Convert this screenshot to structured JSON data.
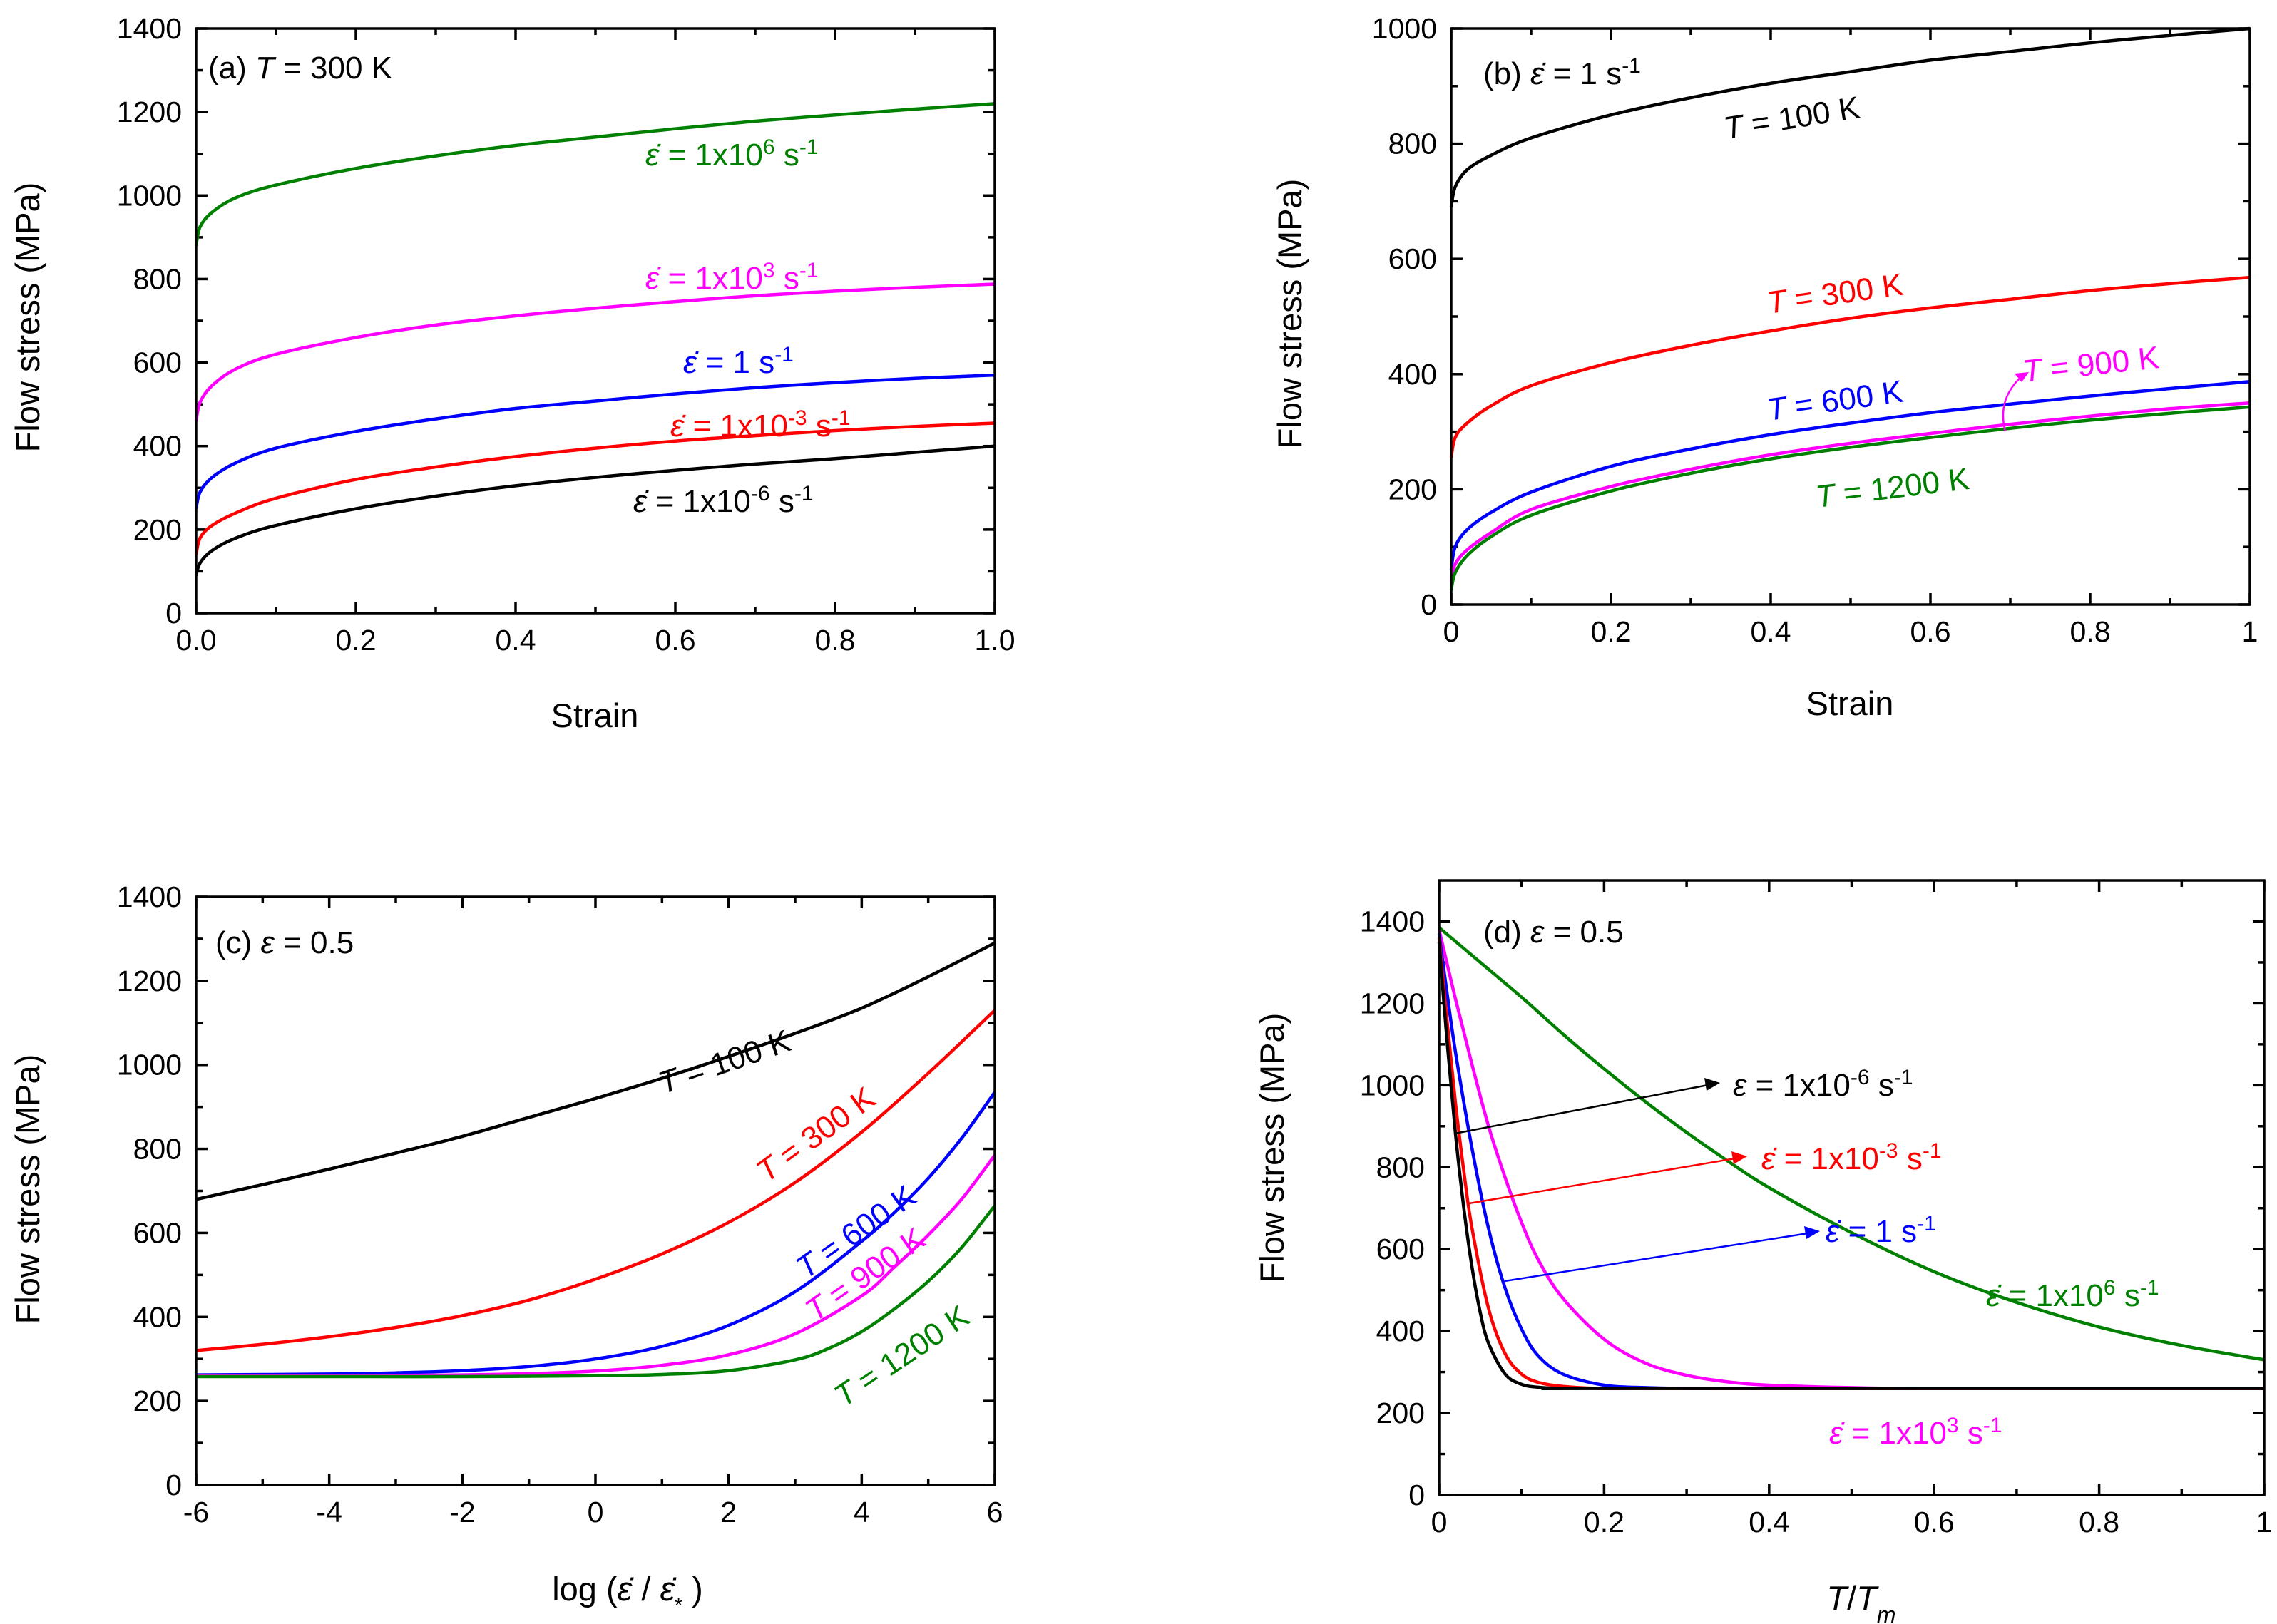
{
  "colors": {
    "black": "#000000",
    "red": "#ff0000",
    "blue": "#0000ff",
    "magenta": "#ff00ff",
    "green": "#008000"
  },
  "chart_data": [
    {
      "id": "a",
      "type": "line",
      "panel_label": "(a) T = 300 K",
      "xlabel": "Strain",
      "ylabel": "Flow stress (MPa)",
      "xlim": [
        0,
        1
      ],
      "ylim": [
        0,
        1400
      ],
      "xticks": [
        "0.0",
        "0.2",
        "0.4",
        "0.6",
        "0.8",
        "1.0"
      ],
      "xtick_values": [
        0,
        0.2,
        0.4,
        0.6,
        0.8,
        1.0
      ],
      "yticks": [
        "0",
        "200",
        "400",
        "600",
        "800",
        "1000",
        "1200",
        "1400"
      ],
      "ytick_values": [
        0,
        200,
        400,
        600,
        800,
        1000,
        1200,
        1400
      ],
      "series": [
        {
          "label": "ε̇ = 1x10⁶ s⁻¹",
          "color": "green",
          "x": [
            0,
            0.005,
            0.02,
            0.05,
            0.1,
            0.2,
            0.3,
            0.4,
            0.5,
            0.6,
            0.7,
            0.8,
            0.9,
            1.0
          ],
          "y": [
            880,
            925,
            960,
            995,
            1025,
            1065,
            1095,
            1120,
            1140,
            1160,
            1178,
            1193,
            1207,
            1220
          ]
        },
        {
          "label": "ε̇ = 1x10³ s⁻¹",
          "color": "magenta",
          "x": [
            0,
            0.005,
            0.02,
            0.05,
            0.1,
            0.2,
            0.3,
            0.4,
            0.5,
            0.6,
            0.7,
            0.8,
            0.9,
            1.0
          ],
          "y": [
            460,
            505,
            545,
            585,
            620,
            660,
            690,
            712,
            730,
            746,
            760,
            771,
            780,
            788
          ]
        },
        {
          "label": "ε̇ = 1 s⁻¹",
          "color": "blue",
          "x": [
            0,
            0.005,
            0.02,
            0.05,
            0.1,
            0.2,
            0.3,
            0.4,
            0.5,
            0.6,
            0.7,
            0.8,
            0.9,
            1.0
          ],
          "y": [
            250,
            290,
            325,
            360,
            395,
            435,
            465,
            490,
            508,
            525,
            540,
            552,
            562,
            570
          ]
        },
        {
          "label": "ε̇ = 1x10⁻³ s⁻¹",
          "color": "red",
          "x": [
            0,
            0.005,
            0.02,
            0.05,
            0.1,
            0.2,
            0.3,
            0.4,
            0.5,
            0.6,
            0.7,
            0.8,
            0.9,
            1.0
          ],
          "y": [
            140,
            180,
            210,
            240,
            275,
            320,
            350,
            375,
            395,
            412,
            425,
            437,
            447,
            455
          ]
        },
        {
          "label": "ε̇ = 1x10⁻⁶ s⁻¹",
          "color": "black",
          "x": [
            0,
            0.005,
            0.02,
            0.05,
            0.1,
            0.2,
            0.3,
            0.4,
            0.5,
            0.6,
            0.7,
            0.8,
            0.9,
            1.0
          ],
          "y": [
            90,
            120,
            150,
            180,
            210,
            250,
            280,
            305,
            325,
            342,
            357,
            370,
            385,
            400
          ]
        }
      ]
    },
    {
      "id": "b",
      "type": "line",
      "panel_label": "(b) ε̇ = 1 s⁻¹",
      "xlabel": "Strain",
      "ylabel": "Flow stress (MPa)",
      "xlim": [
        0,
        1
      ],
      "ylim": [
        0,
        1000
      ],
      "xticks": [
        "0",
        "0.2",
        "0.4",
        "0.6",
        "0.8",
        "1"
      ],
      "xtick_values": [
        0,
        0.2,
        0.4,
        0.6,
        0.8,
        1.0
      ],
      "yticks": [
        "0",
        "200",
        "400",
        "600",
        "800",
        "1000"
      ],
      "ytick_values": [
        0,
        200,
        400,
        600,
        800,
        1000
      ],
      "series": [
        {
          "label": "T = 100 K",
          "color": "black",
          "x": [
            0,
            0.005,
            0.02,
            0.05,
            0.1,
            0.2,
            0.3,
            0.4,
            0.5,
            0.6,
            0.7,
            0.8,
            0.9,
            1.0
          ],
          "y": [
            690,
            725,
            755,
            780,
            810,
            850,
            880,
            905,
            925,
            945,
            960,
            975,
            988,
            1000
          ]
        },
        {
          "label": "T = 300 K",
          "color": "red",
          "x": [
            0,
            0.005,
            0.02,
            0.05,
            0.1,
            0.2,
            0.3,
            0.4,
            0.5,
            0.6,
            0.7,
            0.8,
            0.9,
            1.0
          ],
          "y": [
            255,
            290,
            315,
            345,
            380,
            420,
            450,
            475,
            497,
            515,
            530,
            545,
            557,
            568
          ]
        },
        {
          "label": "T = 600 K",
          "color": "blue",
          "x": [
            0,
            0.005,
            0.02,
            0.05,
            0.1,
            0.2,
            0.3,
            0.4,
            0.5,
            0.6,
            0.7,
            0.8,
            0.9,
            1.0
          ],
          "y": [
            60,
            100,
            130,
            160,
            195,
            240,
            270,
            295,
            315,
            333,
            348,
            362,
            375,
            387
          ]
        },
        {
          "label": "T = 900 K",
          "color": "magenta",
          "x": [
            0,
            0.005,
            0.02,
            0.05,
            0.1,
            0.2,
            0.3,
            0.4,
            0.5,
            0.6,
            0.7,
            0.8,
            0.9,
            1.0
          ],
          "y": [
            40,
            70,
            95,
            125,
            165,
            205,
            235,
            260,
            280,
            297,
            313,
            327,
            340,
            350
          ]
        },
        {
          "label": "T = 1200 K",
          "color": "green",
          "x": [
            0,
            0.005,
            0.02,
            0.05,
            0.1,
            0.2,
            0.3,
            0.4,
            0.5,
            0.6,
            0.7,
            0.8,
            0.9,
            1.0
          ],
          "y": [
            25,
            55,
            85,
            118,
            155,
            197,
            228,
            253,
            273,
            290,
            306,
            320,
            332,
            343
          ]
        }
      ]
    },
    {
      "id": "c",
      "type": "line",
      "panel_label": "(c) ε = 0.5",
      "xlabel": "log (ε̇ / ε̇*)",
      "ylabel": "Flow stress (MPa)",
      "xlim": [
        -6,
        6
      ],
      "ylim": [
        0,
        1400
      ],
      "xticks": [
        "-6",
        "-4",
        "-2",
        "0",
        "2",
        "4",
        "6"
      ],
      "xtick_values": [
        -6,
        -4,
        -2,
        0,
        2,
        4,
        6
      ],
      "yticks": [
        "0",
        "200",
        "400",
        "600",
        "800",
        "1000",
        "1200",
        "1400"
      ],
      "ytick_values": [
        0,
        200,
        400,
        600,
        800,
        1000,
        1200,
        1400
      ],
      "series": [
        {
          "label": "T = 100 K",
          "color": "black",
          "x": [
            -6,
            -5,
            -4,
            -3,
            -2,
            -1,
            0,
            1,
            2,
            3,
            4,
            5,
            6
          ],
          "y": [
            680,
            715,
            752,
            790,
            830,
            875,
            920,
            968,
            1020,
            1075,
            1135,
            1210,
            1290
          ]
        },
        {
          "label": "T = 300 K",
          "color": "red",
          "x": [
            -6,
            -5,
            -4,
            -3,
            -2,
            -1,
            0,
            1,
            2,
            3,
            4,
            5,
            6
          ],
          "y": [
            320,
            335,
            353,
            375,
            403,
            440,
            490,
            550,
            625,
            720,
            840,
            980,
            1130
          ]
        },
        {
          "label": "T = 600 K",
          "color": "blue",
          "x": [
            -6,
            -4,
            -3,
            -2,
            -1,
            0,
            1,
            2,
            3,
            4,
            4.5,
            5,
            5.5,
            6
          ],
          "y": [
            262,
            264,
            267,
            272,
            282,
            300,
            330,
            380,
            460,
            580,
            650,
            730,
            825,
            935
          ]
        },
        {
          "label": "T = 900 K",
          "color": "magenta",
          "x": [
            -6,
            -4,
            -2,
            -1,
            0,
            1,
            2,
            3,
            4,
            4.5,
            5,
            5.5,
            6
          ],
          "y": [
            260,
            260,
            262,
            265,
            271,
            285,
            310,
            360,
            450,
            520,
            595,
            680,
            785
          ]
        },
        {
          "label": "T = 1200 K",
          "color": "green",
          "x": [
            -6,
            -4,
            -2,
            0,
            1,
            2,
            3,
            3.5,
            4,
            4.5,
            5,
            5.5,
            6
          ],
          "y": [
            258,
            258,
            258,
            260,
            263,
            272,
            298,
            325,
            365,
            420,
            485,
            565,
            665
          ]
        }
      ]
    },
    {
      "id": "d",
      "type": "line",
      "panel_label": "(d) ε = 0.5",
      "xlabel": "T/Tm",
      "ylabel": "Flow stress (MPa)",
      "xlim": [
        0,
        1
      ],
      "ylim": [
        0,
        1500
      ],
      "xticks": [
        "0",
        "0.2",
        "0.4",
        "0.6",
        "0.8",
        "1"
      ],
      "xtick_values": [
        0,
        0.2,
        0.4,
        0.6,
        0.8,
        1.0
      ],
      "yticks": [
        "0",
        "200",
        "400",
        "600",
        "800",
        "1000",
        "1200",
        "1400"
      ],
      "ytick_values": [
        0,
        200,
        400,
        600,
        800,
        1000,
        1200,
        1400
      ],
      "series": [
        {
          "label": "ε̇ = 1x10⁶ s⁻¹",
          "color": "green",
          "x": [
            0,
            0.05,
            0.1,
            0.15,
            0.2,
            0.25,
            0.3,
            0.35,
            0.4,
            0.5,
            0.6,
            0.7,
            0.8,
            0.9,
            1.0
          ],
          "y": [
            1385,
            1300,
            1215,
            1125,
            1040,
            960,
            885,
            815,
            750,
            640,
            545,
            470,
            410,
            365,
            330
          ]
        },
        {
          "label": "ε̇ = 1x10³ s⁻¹",
          "color": "magenta",
          "x": [
            0,
            0.02,
            0.04,
            0.06,
            0.08,
            0.1,
            0.12,
            0.15,
            0.2,
            0.25,
            0.3,
            0.35,
            0.4,
            0.5,
            0.6,
            1.0
          ],
          "y": [
            1380,
            1210,
            1050,
            900,
            775,
            665,
            575,
            480,
            380,
            322,
            292,
            276,
            268,
            262,
            260,
            260
          ]
        },
        {
          "label": "ε̇ = 1 s⁻¹",
          "color": "blue",
          "x": [
            0,
            0.01,
            0.02,
            0.04,
            0.06,
            0.08,
            0.1,
            0.12,
            0.15,
            0.2,
            0.25,
            0.3,
            0.4,
            1.0
          ],
          "y": [
            1370,
            1220,
            1080,
            845,
            650,
            505,
            405,
            340,
            295,
            268,
            262,
            260,
            260,
            260
          ]
        },
        {
          "label": "ε̇ = 1x10⁻³ s⁻¹",
          "color": "red",
          "x": [
            0,
            0.01,
            0.02,
            0.03,
            0.04,
            0.06,
            0.08,
            0.1,
            0.12,
            0.15,
            0.2,
            0.3,
            1.0
          ],
          "y": [
            1360,
            1150,
            955,
            790,
            650,
            455,
            345,
            295,
            275,
            265,
            260,
            260,
            260
          ]
        },
        {
          "label": "ε̇ = 1x10⁻⁶ s⁻¹",
          "color": "black",
          "x": [
            0,
            0.01,
            0.02,
            0.03,
            0.04,
            0.05,
            0.06,
            0.08,
            0.1,
            0.12,
            0.15,
            0.2,
            1.0
          ],
          "y": [
            1350,
            1100,
            880,
            700,
            555,
            445,
            370,
            295,
            270,
            263,
            260,
            260,
            260
          ]
        }
      ]
    }
  ]
}
